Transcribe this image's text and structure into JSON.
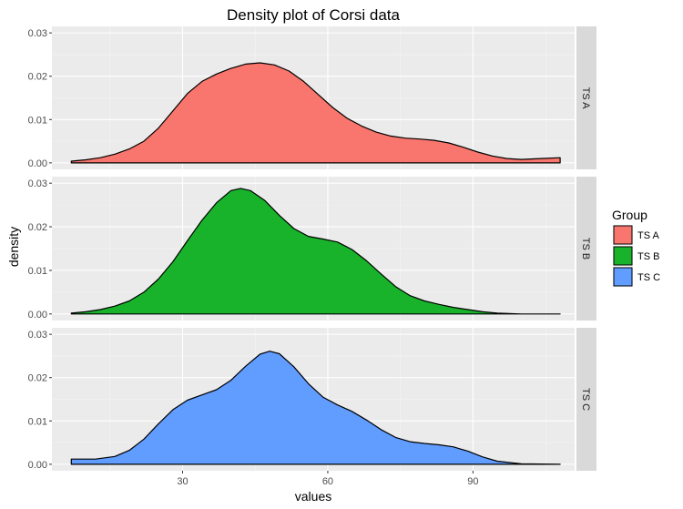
{
  "chart_data": {
    "type": "area",
    "title": "Density plot of Corsi data",
    "xlabel": "values",
    "ylabel": "density",
    "xlim": [
      3,
      111
    ],
    "ylim": [
      -0.0015,
      0.0315
    ],
    "x_ticks": [
      30,
      60,
      90
    ],
    "y_ticks": [
      0,
      0.01,
      0.02,
      0.03
    ],
    "y_tick_labels": [
      "0.00",
      "0.01",
      "0.02",
      "0.03"
    ],
    "grid": true,
    "facets": "rows",
    "legend": {
      "title": "Group",
      "position": "right"
    },
    "series": [
      {
        "name": "TS A",
        "color": "#F8766D",
        "points": [
          [
            7,
            0.0004
          ],
          [
            10,
            0.0007
          ],
          [
            13,
            0.0012
          ],
          [
            16,
            0.002
          ],
          [
            19,
            0.0032
          ],
          [
            22,
            0.005
          ],
          [
            25,
            0.008
          ],
          [
            28,
            0.012
          ],
          [
            31,
            0.016
          ],
          [
            34,
            0.0188
          ],
          [
            37,
            0.0205
          ],
          [
            40,
            0.0218
          ],
          [
            43,
            0.0228
          ],
          [
            46,
            0.0231
          ],
          [
            49,
            0.0226
          ],
          [
            52,
            0.0212
          ],
          [
            55,
            0.0188
          ],
          [
            58,
            0.0158
          ],
          [
            61,
            0.0128
          ],
          [
            64,
            0.0103
          ],
          [
            67,
            0.0085
          ],
          [
            70,
            0.0071
          ],
          [
            73,
            0.0062
          ],
          [
            76,
            0.0057
          ],
          [
            79,
            0.0055
          ],
          [
            82,
            0.0052
          ],
          [
            85,
            0.0046
          ],
          [
            88,
            0.0036
          ],
          [
            91,
            0.0025
          ],
          [
            94,
            0.0016
          ],
          [
            97,
            0.001
          ],
          [
            100,
            0.0008
          ],
          [
            104,
            0.001
          ],
          [
            108,
            0.0012
          ]
        ]
      },
      {
        "name": "TS B",
        "color": "#19B32B",
        "points": [
          [
            7,
            0.0002
          ],
          [
            10,
            0.0005
          ],
          [
            13,
            0.001
          ],
          [
            16,
            0.0018
          ],
          [
            19,
            0.003
          ],
          [
            22,
            0.005
          ],
          [
            25,
            0.008
          ],
          [
            28,
            0.012
          ],
          [
            31,
            0.0168
          ],
          [
            34,
            0.0215
          ],
          [
            37,
            0.0255
          ],
          [
            40,
            0.0283
          ],
          [
            42,
            0.0288
          ],
          [
            44,
            0.0283
          ],
          [
            47,
            0.026
          ],
          [
            50,
            0.0226
          ],
          [
            53,
            0.0196
          ],
          [
            56,
            0.0178
          ],
          [
            59,
            0.0172
          ],
          [
            62,
            0.0165
          ],
          [
            65,
            0.0148
          ],
          [
            68,
            0.0122
          ],
          [
            71,
            0.0092
          ],
          [
            74,
            0.0063
          ],
          [
            77,
            0.0042
          ],
          [
            80,
            0.003
          ],
          [
            83,
            0.0022
          ],
          [
            86,
            0.0015
          ],
          [
            89,
            0.001
          ],
          [
            92,
            0.0005
          ],
          [
            95,
            0.0002
          ],
          [
            100,
            0.0
          ],
          [
            108,
            0.0
          ]
        ]
      },
      {
        "name": "TS C",
        "color": "#619CFF",
        "points": [
          [
            7,
            0.0012
          ],
          [
            12,
            0.0012
          ],
          [
            16,
            0.0018
          ],
          [
            19,
            0.0032
          ],
          [
            22,
            0.0058
          ],
          [
            25,
            0.0093
          ],
          [
            28,
            0.0126
          ],
          [
            31,
            0.0148
          ],
          [
            34,
            0.016
          ],
          [
            37,
            0.0172
          ],
          [
            40,
            0.0194
          ],
          [
            43,
            0.0226
          ],
          [
            46,
            0.0254
          ],
          [
            48,
            0.0261
          ],
          [
            50,
            0.0255
          ],
          [
            53,
            0.0225
          ],
          [
            56,
            0.0186
          ],
          [
            59,
            0.0155
          ],
          [
            62,
            0.0137
          ],
          [
            65,
            0.0122
          ],
          [
            68,
            0.0102
          ],
          [
            71,
            0.008
          ],
          [
            74,
            0.0062
          ],
          [
            77,
            0.0052
          ],
          [
            80,
            0.0048
          ],
          [
            83,
            0.0045
          ],
          [
            86,
            0.004
          ],
          [
            89,
            0.003
          ],
          [
            92,
            0.0017
          ],
          [
            95,
            0.0007
          ],
          [
            100,
            0.0001
          ],
          [
            108,
            0.0
          ]
        ]
      }
    ]
  }
}
